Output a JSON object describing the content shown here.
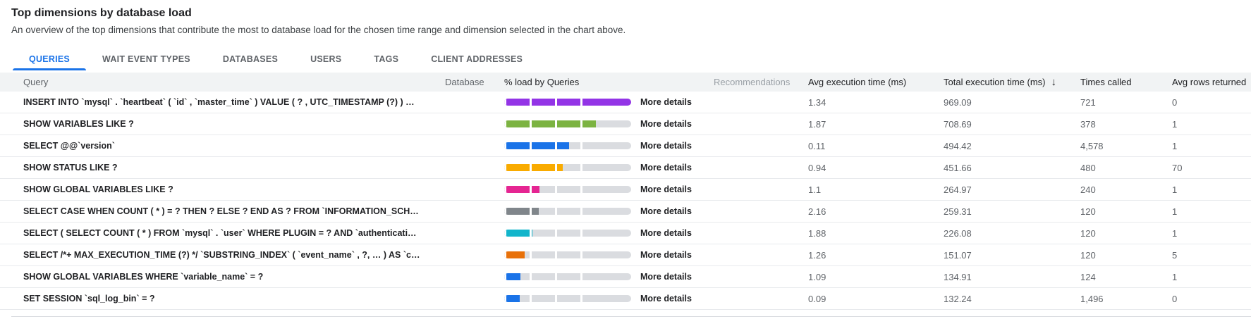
{
  "header": {
    "title": "Top dimensions by database load",
    "subtitle": "An overview of the top dimensions that contribute the most to database load for the chosen time range and dimension selected in the chart above."
  },
  "tabs": [
    {
      "label": "QUERIES",
      "active": true
    },
    {
      "label": "WAIT EVENT TYPES",
      "active": false
    },
    {
      "label": "DATABASES",
      "active": false
    },
    {
      "label": "USERS",
      "active": false
    },
    {
      "label": "TAGS",
      "active": false
    },
    {
      "label": "CLIENT ADDRESSES",
      "active": false
    }
  ],
  "colors": {
    "accent": "#1a73e8",
    "bar_track": "#dadce0",
    "header_bg": "#f1f3f4"
  },
  "table": {
    "columns": {
      "query": "Query",
      "database": "Database",
      "load": "% load by Queries",
      "recommendations": "Recommendations",
      "avg_exec": "Avg execution time (ms)",
      "total_exec": "Total execution time (ms)",
      "times_called": "Times called",
      "avg_rows": "Avg rows returned"
    },
    "sort": {
      "column": "total_exec",
      "direction": "desc",
      "arrow_glyph": "↓"
    },
    "more_details_label": "More details",
    "rows": [
      {
        "query": "INSERT INTO `mysql` . `heartbeat` ( `id` , `master_time` ) VALUE ( ? , UTC_TIMESTAMP (?) ) O…",
        "database": "",
        "load_pct": 100,
        "bar_color": "#9334e6",
        "recommendations": "",
        "avg_exec": "1.34",
        "total_exec": "969.09",
        "times_called": "721",
        "avg_rows": "0"
      },
      {
        "query": "SHOW VARIABLES LIKE ?",
        "database": "",
        "load_pct": 72,
        "bar_color": "#7cb342",
        "recommendations": "",
        "avg_exec": "1.87",
        "total_exec": "708.69",
        "times_called": "378",
        "avg_rows": "1"
      },
      {
        "query": "SELECT @@`version`",
        "database": "",
        "load_pct": 51,
        "bar_color": "#1a73e8",
        "recommendations": "",
        "avg_exec": "0.11",
        "total_exec": "494.42",
        "times_called": "4,578",
        "avg_rows": "1"
      },
      {
        "query": "SHOW STATUS LIKE ?",
        "database": "",
        "load_pct": 46,
        "bar_color": "#f9ab00",
        "recommendations": "",
        "avg_exec": "0.94",
        "total_exec": "451.66",
        "times_called": "480",
        "avg_rows": "70"
      },
      {
        "query": "SHOW GLOBAL VARIABLES LIKE ?",
        "database": "",
        "load_pct": 28,
        "bar_color": "#e52592",
        "recommendations": "",
        "avg_exec": "1.1",
        "total_exec": "264.97",
        "times_called": "240",
        "avg_rows": "1"
      },
      {
        "query": "SELECT CASE WHEN COUNT ( * ) = ? THEN ? ELSE ? END AS ? FROM `INFORMATION_SCHEM…",
        "database": "",
        "load_pct": 27,
        "bar_color": "#80868b",
        "recommendations": "",
        "avg_exec": "2.16",
        "total_exec": "259.31",
        "times_called": "120",
        "avg_rows": "1"
      },
      {
        "query": "SELECT ( SELECT COUNT ( * ) FROM `mysql` . `user` WHERE PLUGIN = ? AND `authentication…",
        "database": "",
        "load_pct": 22,
        "bar_color": "#12b5cb",
        "recommendations": "",
        "avg_exec": "1.88",
        "total_exec": "226.08",
        "times_called": "120",
        "avg_rows": "1"
      },
      {
        "query": "SELECT /*+ MAX_EXECUTION_TIME (?) */ `SUBSTRING_INDEX` ( `event_name` , ?, … ) AS `co…",
        "database": "",
        "load_pct": 16,
        "bar_color": "#e8710a",
        "recommendations": "",
        "avg_exec": "1.26",
        "total_exec": "151.07",
        "times_called": "120",
        "avg_rows": "5"
      },
      {
        "query": "SHOW GLOBAL VARIABLES WHERE `variable_name` = ?",
        "database": "",
        "load_pct": 13,
        "bar_color": "#1a73e8",
        "recommendations": "",
        "avg_exec": "1.09",
        "total_exec": "134.91",
        "times_called": "124",
        "avg_rows": "1"
      },
      {
        "query": "SET SESSION `sql_log_bin` = ?",
        "database": "",
        "load_pct": 12,
        "bar_color": "#1a73e8",
        "recommendations": "",
        "avg_exec": "0.09",
        "total_exec": "132.24",
        "times_called": "1,496",
        "avg_rows": "0"
      }
    ]
  }
}
